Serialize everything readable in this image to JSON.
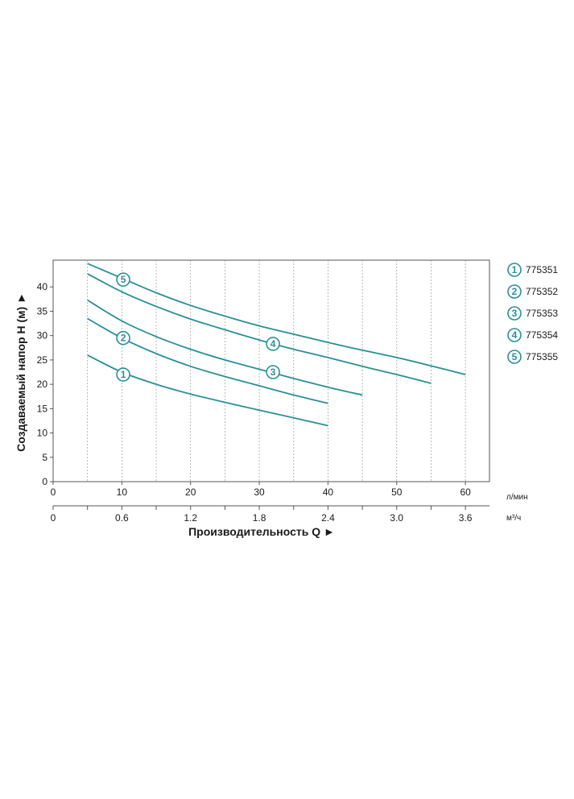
{
  "chart_data": {
    "type": "line",
    "xlabel": "Производительность Q ►",
    "ylabel": "Создаваемый напор H (м) ►",
    "x_unit": "л/мин",
    "x2_unit": "м³/ч",
    "xlim": [
      0,
      63.5
    ],
    "ylim": [
      0,
      45.5
    ],
    "x_ticks": [
      "0",
      "10",
      "20",
      "30",
      "40",
      "50",
      "60"
    ],
    "x2_ticks": [
      "0",
      "0.6",
      "1.2",
      "1.8",
      "2.4",
      "3.0",
      "3.6"
    ],
    "y_ticks": [
      "0",
      "5",
      "10",
      "15",
      "20",
      "25",
      "30",
      "35",
      "40"
    ],
    "grid": true,
    "legend_position": "right",
    "line_color": "#2a8f96",
    "series": [
      {
        "name": "775351",
        "marker": "1",
        "marker_at": [
          10.2,
          22.0
        ],
        "x": [
          5,
          10,
          15,
          20,
          25,
          30,
          35,
          40
        ],
        "y": [
          26.0,
          22.5,
          20.0,
          18.0,
          16.3,
          14.7,
          13.1,
          11.5
        ]
      },
      {
        "name": "775352",
        "marker": "2",
        "marker_at": [
          10.2,
          29.5
        ],
        "x": [
          5,
          10,
          15,
          20,
          25,
          30,
          35,
          40
        ],
        "y": [
          33.5,
          29.5,
          26.3,
          23.7,
          21.6,
          19.7,
          17.8,
          16.1
        ]
      },
      {
        "name": "775353",
        "marker": "3",
        "marker_at": [
          32.0,
          22.5
        ],
        "x": [
          5,
          10,
          15,
          20,
          25,
          30,
          35,
          40,
          45
        ],
        "y": [
          37.3,
          33.0,
          29.8,
          27.2,
          25.0,
          23.1,
          21.2,
          19.4,
          17.8
        ]
      },
      {
        "name": "775354",
        "marker": "4",
        "marker_at": [
          32.0,
          28.3
        ],
        "x": [
          5,
          10,
          15,
          20,
          25,
          30,
          35,
          40,
          45,
          50,
          55
        ],
        "y": [
          42.7,
          39.0,
          36.0,
          33.4,
          31.2,
          29.1,
          27.2,
          25.5,
          23.7,
          22.0,
          20.2
        ]
      },
      {
        "name": "775355",
        "marker": "5",
        "marker_at": [
          10.2,
          41.5
        ],
        "x": [
          5,
          10,
          15,
          20,
          25,
          30,
          35,
          40,
          45,
          50,
          55,
          60
        ],
        "y": [
          44.8,
          41.8,
          38.8,
          36.2,
          34.0,
          32.0,
          30.3,
          28.6,
          27.0,
          25.5,
          23.8,
          22.0
        ]
      }
    ]
  }
}
